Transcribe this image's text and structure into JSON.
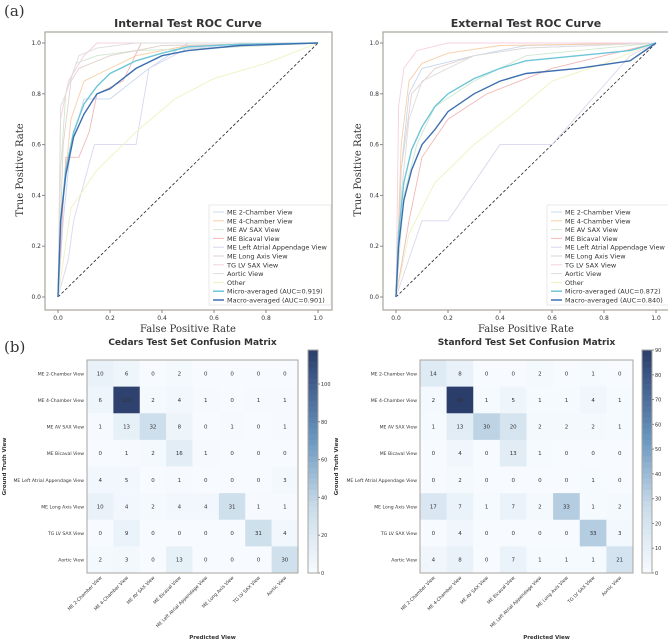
{
  "panel_labels": {
    "a": "(a)",
    "b": "(b)"
  },
  "class_names": [
    "ME 2-Chamber View",
    "ME 4-Chamber View",
    "ME AV SAX View",
    "ME Bicaval View",
    "ME Left Atrial Appendage View",
    "ME Long Axis View",
    "TG LV SAX View",
    "Aortic View"
  ],
  "class_colors": [
    "#c8d8ee",
    "#f7cfa8",
    "#cfe8cf",
    "#f2b8b8",
    "#dcd6ee",
    "#e2d2ce",
    "#f6cfe0",
    "#dddddd",
    "#eef2c0"
  ],
  "chart_data": [
    {
      "type": "line",
      "title": "Internal Test ROC Curve",
      "xlabel": "False Positive Rate",
      "ylabel": "True Positive Rate",
      "xlim": [
        0,
        1
      ],
      "ylim": [
        0,
        1
      ],
      "xticks": [
        "0.0",
        "0.2",
        "0.4",
        "0.6",
        "0.8",
        "1.0"
      ],
      "yticks": [
        "0.0",
        "0.2",
        "0.4",
        "0.6",
        "0.8",
        "1.0"
      ],
      "legend_position": "lower-right",
      "series": [
        {
          "name": "ME 2-Chamber View",
          "x": [
            0,
            0.02,
            0.05,
            0.1,
            0.2,
            0.35,
            0.5,
            1
          ],
          "y": [
            0,
            0.3,
            0.6,
            0.78,
            0.78,
            0.9,
            1,
            1
          ]
        },
        {
          "name": "ME 4-Chamber View",
          "x": [
            0,
            0.02,
            0.05,
            0.1,
            0.2,
            0.3,
            0.5,
            1
          ],
          "y": [
            0,
            0.4,
            0.7,
            0.85,
            0.9,
            0.95,
            0.99,
            1
          ]
        },
        {
          "name": "ME AV SAX View",
          "x": [
            0,
            0.01,
            0.03,
            0.07,
            0.15,
            0.3,
            0.6,
            1
          ],
          "y": [
            0,
            0.5,
            0.8,
            0.92,
            0.95,
            0.97,
            0.98,
            1
          ]
        },
        {
          "name": "ME Bicaval View",
          "x": [
            0,
            0.03,
            0.08,
            0.12,
            0.15,
            0.25,
            0.32,
            1
          ],
          "y": [
            0,
            0.55,
            0.55,
            0.65,
            0.8,
            0.85,
            1,
            1
          ]
        },
        {
          "name": "ME Left Atrial Appendage View",
          "x": [
            0,
            0.04,
            0.06,
            0.14,
            0.3,
            0.35,
            0.5,
            1
          ],
          "y": [
            0,
            0.15,
            0.3,
            0.6,
            0.6,
            0.9,
            0.98,
            1
          ]
        },
        {
          "name": "ME Long Axis View",
          "x": [
            0,
            0.02,
            0.05,
            0.08,
            0.2,
            0.4,
            1
          ],
          "y": [
            0,
            0.6,
            0.85,
            0.9,
            0.95,
            0.99,
            1
          ]
        },
        {
          "name": "TG LV SAX View",
          "x": [
            0,
            0.01,
            0.04,
            0.1,
            0.15,
            0.3,
            1
          ],
          "y": [
            0,
            0.7,
            0.85,
            0.95,
            1,
            1,
            1
          ]
        },
        {
          "name": "Aortic View",
          "x": [
            0,
            0.01,
            0.03,
            0.08,
            0.15,
            0.3,
            1
          ],
          "y": [
            0,
            0.75,
            0.8,
            0.95,
            0.98,
            1,
            1
          ]
        },
        {
          "name": "Other",
          "x": [
            0,
            0.05,
            0.15,
            0.3,
            0.45,
            0.6,
            0.8,
            1
          ],
          "y": [
            0,
            0.35,
            0.5,
            0.65,
            0.78,
            0.86,
            0.92,
            1
          ]
        },
        {
          "name": "Micro-averaged (AUC=0.919)",
          "x": [
            0,
            0.01,
            0.03,
            0.06,
            0.1,
            0.15,
            0.2,
            0.3,
            0.4,
            0.5,
            0.7,
            1
          ],
          "y": [
            0,
            0.3,
            0.5,
            0.65,
            0.76,
            0.83,
            0.88,
            0.93,
            0.96,
            0.985,
            0.995,
            1
          ]
        },
        {
          "name": "Macro-averaged (AUC=0.901)",
          "x": [
            0,
            0.01,
            0.03,
            0.06,
            0.1,
            0.15,
            0.2,
            0.3,
            0.4,
            0.5,
            0.7,
            1
          ],
          "y": [
            0,
            0.3,
            0.48,
            0.63,
            0.72,
            0.8,
            0.82,
            0.9,
            0.95,
            0.97,
            0.99,
            1
          ]
        }
      ]
    },
    {
      "type": "line",
      "title": "External Test ROC Curve",
      "xlabel": "False Positive Rate",
      "ylabel": "True Positive Rate",
      "xlim": [
        0,
        1
      ],
      "ylim": [
        0,
        1
      ],
      "xticks": [
        "0.0",
        "0.2",
        "0.4",
        "0.6",
        "0.8",
        "1.0"
      ],
      "yticks": [
        "0.0",
        "0.2",
        "0.4",
        "0.6",
        "0.8",
        "1.0"
      ],
      "legend_position": "lower-right",
      "series": [
        {
          "name": "ME 2-Chamber View",
          "x": [
            0,
            0.02,
            0.05,
            0.1,
            0.3,
            0.5,
            1
          ],
          "y": [
            0,
            0.5,
            0.8,
            0.9,
            0.95,
            0.99,
            1
          ]
        },
        {
          "name": "ME 4-Chamber View",
          "x": [
            0,
            0.02,
            0.05,
            0.1,
            0.2,
            0.4,
            1
          ],
          "y": [
            0,
            0.6,
            0.85,
            0.92,
            0.96,
            0.99,
            1
          ]
        },
        {
          "name": "ME AV SAX View",
          "x": [
            0,
            0.03,
            0.08,
            0.15,
            0.3,
            0.5,
            1
          ],
          "y": [
            0,
            0.4,
            0.6,
            0.75,
            0.85,
            0.95,
            1
          ]
        },
        {
          "name": "ME Bicaval View",
          "x": [
            0,
            0.05,
            0.1,
            0.2,
            0.35,
            0.6,
            1
          ],
          "y": [
            0,
            0.3,
            0.55,
            0.7,
            0.8,
            0.9,
            1
          ]
        },
        {
          "name": "ME Left Atrial Appendage View",
          "x": [
            0,
            0.1,
            0.2,
            0.4,
            0.6,
            0.9,
            1
          ],
          "y": [
            0,
            0.3,
            0.3,
            0.6,
            0.6,
            0.95,
            1
          ]
        },
        {
          "name": "ME Long Axis View",
          "x": [
            0,
            0.02,
            0.06,
            0.15,
            0.3,
            0.5,
            1
          ],
          "y": [
            0,
            0.5,
            0.8,
            0.9,
            0.95,
            0.98,
            1
          ]
        },
        {
          "name": "TG LV SAX View",
          "x": [
            0,
            0.01,
            0.03,
            0.08,
            0.2,
            1
          ],
          "y": [
            0,
            0.75,
            0.9,
            0.97,
            1,
            1
          ]
        },
        {
          "name": "Aortic View",
          "x": [
            0,
            0.02,
            0.05,
            0.1,
            0.3,
            0.5,
            1
          ],
          "y": [
            0,
            0.4,
            0.7,
            0.85,
            0.95,
            0.98,
            1
          ]
        },
        {
          "name": "Other",
          "x": [
            0,
            0.05,
            0.15,
            0.3,
            0.45,
            0.6,
            0.8,
            1
          ],
          "y": [
            0,
            0.25,
            0.45,
            0.6,
            0.72,
            0.85,
            0.92,
            1
          ]
        },
        {
          "name": "Micro-averaged (AUC=0.872)",
          "x": [
            0,
            0.01,
            0.03,
            0.06,
            0.1,
            0.15,
            0.2,
            0.3,
            0.4,
            0.5,
            0.7,
            0.9,
            1
          ],
          "y": [
            0,
            0.25,
            0.45,
            0.58,
            0.67,
            0.75,
            0.8,
            0.86,
            0.9,
            0.93,
            0.95,
            0.97,
            1
          ]
        },
        {
          "name": "Macro-averaged (AUC=0.840)",
          "x": [
            0,
            0.01,
            0.03,
            0.06,
            0.1,
            0.15,
            0.2,
            0.3,
            0.4,
            0.5,
            0.7,
            0.9,
            1
          ],
          "y": [
            0,
            0.2,
            0.38,
            0.5,
            0.6,
            0.66,
            0.73,
            0.8,
            0.85,
            0.88,
            0.9,
            0.93,
            1
          ]
        }
      ]
    },
    {
      "type": "heatmap",
      "title": "Cedars Test Set Confusion Matrix",
      "xlabel": "Predicted View",
      "ylabel": "Ground Truth View",
      "colorbar_ticks": [
        0,
        20,
        40,
        60,
        80,
        100
      ],
      "colorbar_max": 118,
      "matrix": [
        [
          10,
          6,
          0,
          2,
          0,
          0,
          0,
          0
        ],
        [
          6,
          116,
          2,
          4,
          1,
          0,
          1,
          1
        ],
        [
          1,
          13,
          32,
          8,
          0,
          1,
          0,
          1
        ],
        [
          0,
          1,
          2,
          16,
          1,
          0,
          0,
          0
        ],
        [
          4,
          5,
          0,
          1,
          0,
          0,
          0,
          3
        ],
        [
          10,
          4,
          2,
          4,
          4,
          31,
          1,
          1
        ],
        [
          0,
          9,
          0,
          0,
          0,
          0,
          31,
          4
        ],
        [
          2,
          3,
          0,
          13,
          0,
          0,
          0,
          30
        ]
      ]
    },
    {
      "type": "heatmap",
      "title": "Stanford Test Set Confusion Matrix",
      "xlabel": "Predicted View",
      "ylabel": "Ground Truth View",
      "colorbar_ticks": [
        0,
        10,
        20,
        30,
        40,
        50,
        60,
        70,
        80,
        90
      ],
      "colorbar_max": 90,
      "matrix": [
        [
          14,
          8,
          0,
          0,
          2,
          0,
          1,
          0
        ],
        [
          2,
          90,
          1,
          5,
          1,
          1,
          4,
          1
        ],
        [
          1,
          13,
          30,
          20,
          2,
          2,
          2,
          1
        ],
        [
          0,
          4,
          0,
          13,
          1,
          0,
          0,
          0
        ],
        [
          0,
          2,
          0,
          0,
          0,
          0,
          1,
          0
        ],
        [
          17,
          7,
          1,
          7,
          2,
          33,
          1,
          2
        ],
        [
          0,
          4,
          0,
          0,
          0,
          0,
          33,
          3
        ],
        [
          4,
          8,
          0,
          7,
          1,
          1,
          1,
          21
        ]
      ]
    }
  ]
}
